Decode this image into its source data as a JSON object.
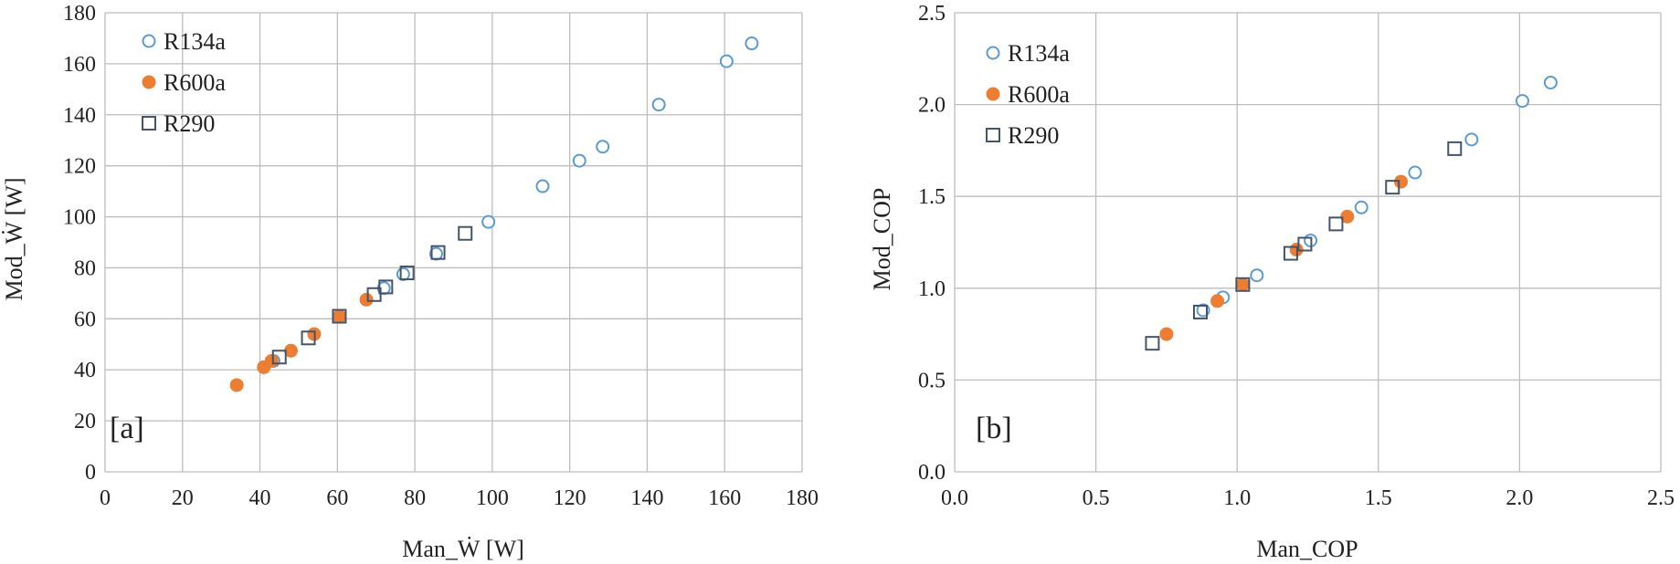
{
  "chart_data": [
    {
      "type": "scatter",
      "panel_label": "[a]",
      "xlabel": "Man_Ẇ [W]",
      "ylabel": "Mod_Ẇ [W]",
      "xlim": [
        0,
        180
      ],
      "ylim": [
        0,
        180
      ],
      "xticks": [
        0,
        20,
        40,
        60,
        80,
        100,
        120,
        140,
        160,
        180
      ],
      "yticks": [
        0,
        20,
        40,
        60,
        80,
        100,
        120,
        140,
        160,
        180
      ],
      "tick_decimals": 0,
      "grid": true,
      "legend_position": "top-left",
      "series": [
        {
          "name": "R134a",
          "marker": "circle-open",
          "color": "#5b9bd5",
          "points": [
            [
              43.5,
              43.5
            ],
            [
              60.5,
              60.8
            ],
            [
              72,
              72
            ],
            [
              77,
              77.5
            ],
            [
              85.5,
              85.5
            ],
            [
              99,
              98
            ],
            [
              113,
              112
            ],
            [
              122.5,
              122
            ],
            [
              128.5,
              127.5
            ],
            [
              143,
              144
            ],
            [
              160.5,
              161
            ],
            [
              167,
              168
            ]
          ]
        },
        {
          "name": "R600a",
          "marker": "circle-filled",
          "color": "#ed7d31",
          "points": [
            [
              34,
              34
            ],
            [
              41,
              41
            ],
            [
              43,
              43.5
            ],
            [
              48,
              47.5
            ],
            [
              54,
              54
            ],
            [
              60.5,
              61
            ],
            [
              67.5,
              67.5
            ]
          ]
        },
        {
          "name": "R290",
          "marker": "square-open",
          "color": "#44546a",
          "points": [
            [
              45,
              45
            ],
            [
              52.5,
              52.5
            ],
            [
              60.5,
              61
            ],
            [
              69.5,
              69.5
            ],
            [
              72.5,
              72.5
            ],
            [
              78,
              78
            ],
            [
              86,
              86
            ],
            [
              93,
              93.5
            ]
          ]
        }
      ]
    },
    {
      "type": "scatter",
      "panel_label": "[b]",
      "xlabel": "Man_COP",
      "ylabel": "Mod_COP",
      "xlim": [
        0,
        2.5
      ],
      "ylim": [
        0,
        2.5
      ],
      "xticks": [
        0,
        0.5,
        1,
        1.5,
        2,
        2.5
      ],
      "yticks": [
        0,
        0.5,
        1,
        1.5,
        2,
        2.5
      ],
      "tick_decimals": 1,
      "grid": true,
      "legend_position": "top-left",
      "series": [
        {
          "name": "R134a",
          "marker": "circle-open",
          "color": "#5b9bd5",
          "points": [
            [
              0.88,
              0.88
            ],
            [
              0.95,
              0.95
            ],
            [
              1.07,
              1.07
            ],
            [
              1.26,
              1.26
            ],
            [
              1.44,
              1.44
            ],
            [
              1.63,
              1.63
            ],
            [
              1.83,
              1.81
            ],
            [
              2.01,
              2.02
            ],
            [
              2.11,
              2.12
            ]
          ]
        },
        {
          "name": "R600a",
          "marker": "circle-filled",
          "color": "#ed7d31",
          "points": [
            [
              0.75,
              0.75
            ],
            [
              0.93,
              0.93
            ],
            [
              1.02,
              1.02
            ],
            [
              1.21,
              1.21
            ],
            [
              1.39,
              1.39
            ],
            [
              1.58,
              1.58
            ]
          ]
        },
        {
          "name": "R290",
          "marker": "square-open",
          "color": "#44546a",
          "points": [
            [
              0.7,
              0.7
            ],
            [
              0.87,
              0.87
            ],
            [
              1.02,
              1.02
            ],
            [
              1.19,
              1.19
            ],
            [
              1.24,
              1.24
            ],
            [
              1.35,
              1.35
            ],
            [
              1.55,
              1.55
            ],
            [
              1.77,
              1.76
            ]
          ]
        }
      ]
    }
  ]
}
